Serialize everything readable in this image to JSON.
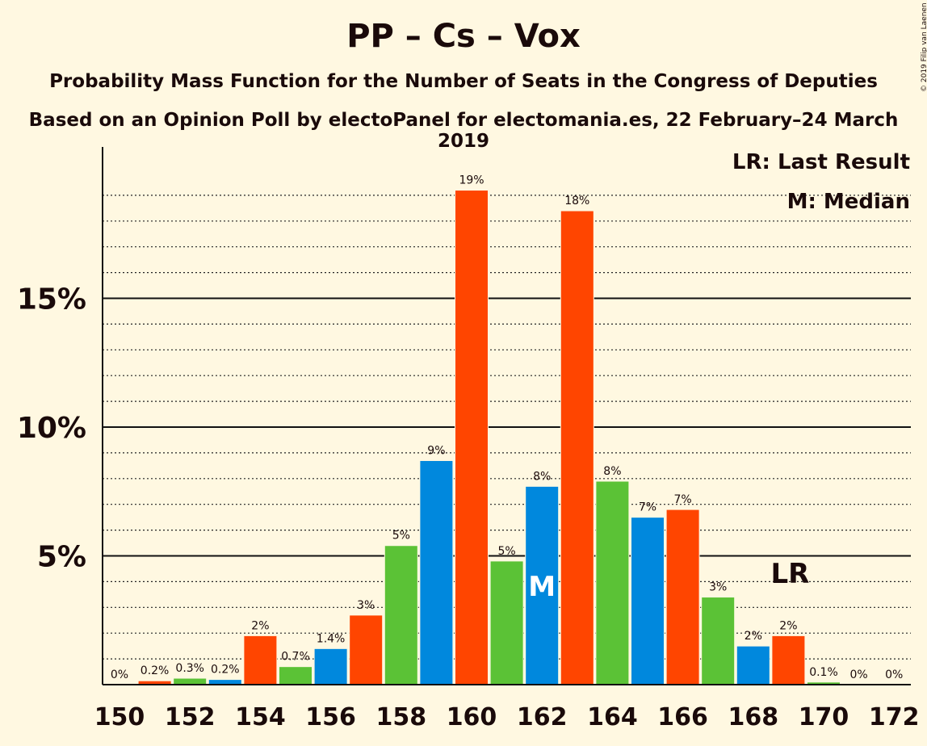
{
  "chart_data": {
    "type": "bar",
    "title": "PP – Cs – Vox",
    "subtitle": "Probability Mass Function for the Number of Seats in the Congress of Deputies",
    "source": "Based on an Opinion Poll by electoPanel for electomania.es, 22 February–24 March 2019",
    "copyright": "© 2019 Filip van Laenen",
    "legend": [
      "LR: Last Result",
      "M: Median"
    ],
    "ylim": [
      0,
      20
    ],
    "ytick_labels": [
      "5%",
      "10%",
      "15%"
    ],
    "ytick_values": [
      5,
      10,
      15
    ],
    "xtick_labels": [
      "150",
      "152",
      "154",
      "156",
      "158",
      "160",
      "162",
      "164",
      "166",
      "168",
      "170",
      "172"
    ],
    "categories": [
      150,
      151,
      152,
      153,
      154,
      155,
      156,
      157,
      158,
      159,
      160,
      161,
      162,
      163,
      164,
      165,
      166,
      167,
      168,
      169,
      170,
      171,
      172
    ],
    "values": [
      0,
      0.15,
      0.25,
      0.2,
      1.9,
      0.7,
      1.4,
      2.7,
      5.4,
      8.7,
      19.2,
      4.8,
      7.7,
      18.4,
      7.9,
      6.5,
      6.8,
      3.4,
      1.5,
      1.9,
      0.1,
      0,
      0
    ],
    "labels": [
      "0%",
      "0.2%",
      "0.3%",
      "0.2%",
      "2%",
      "0.7%",
      "1.4%",
      "3%",
      "5%",
      "9%",
      "19%",
      "5%",
      "8%",
      "18%",
      "8%",
      "7%",
      "7%",
      "3%",
      "2%",
      "2%",
      "0.1%",
      "0%",
      "0%"
    ],
    "colors": [
      "#FF4500",
      "#FF4500",
      "#5BC236",
      "#0088DD",
      "#FF4500",
      "#5BC236",
      "#0088DD",
      "#FF4500",
      "#5BC236",
      "#0088DD",
      "#FF4500",
      "#5BC236",
      "#0088DD",
      "#FF4500",
      "#5BC236",
      "#0088DD",
      "#FF4500",
      "#5BC236",
      "#0088DD",
      "#FF4500",
      "#5BC236",
      "#0088DD",
      "#FF4500"
    ],
    "median_seat": 162,
    "median_marker": "M",
    "last_result_seat": 169,
    "last_result_marker": "LR"
  }
}
